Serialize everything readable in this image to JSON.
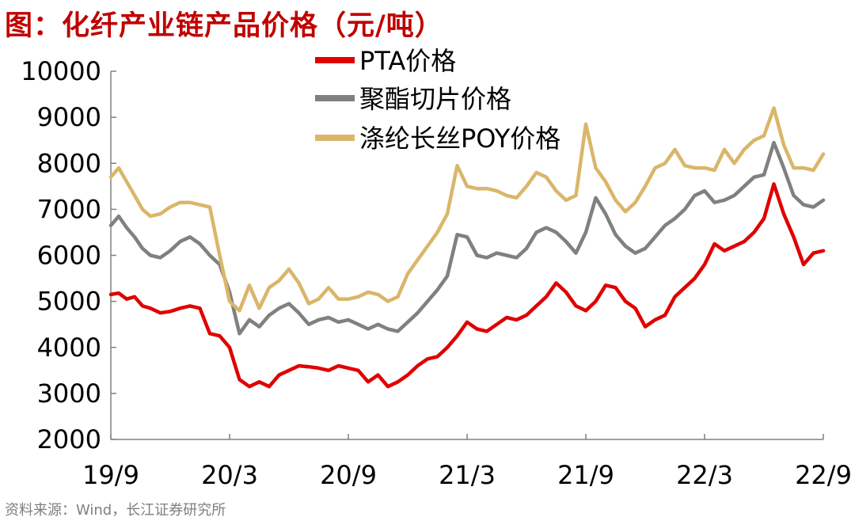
{
  "title": "图：化纤产业链产品价格（元/吨）",
  "source": "资料来源：Wind，长江证券研究所",
  "chart_data": {
    "type": "line",
    "title": "图：化纤产业链产品价格（元/吨）",
    "xlabel": "",
    "ylabel": "",
    "ylim": [
      2000,
      10000
    ],
    "yticks": [
      "10000",
      "9000",
      "8000",
      "7000",
      "6000",
      "5000",
      "4000",
      "3000",
      "2000"
    ],
    "ytick_values": [
      10000,
      9000,
      8000,
      7000,
      6000,
      5000,
      4000,
      3000,
      2000
    ],
    "xticks": [
      "19/9",
      "20/3",
      "20/9",
      "21/3",
      "21/9",
      "22/3",
      "22/9"
    ],
    "xlim": [
      0,
      36
    ],
    "legend_position": "top-center",
    "series": [
      {
        "name": "PTA价格",
        "color": "#e00000",
        "x": [
          0,
          0.4,
          0.8,
          1.2,
          1.6,
          2,
          2.5,
          3,
          3.5,
          4,
          4.5,
          5,
          5.5,
          6,
          6.5,
          7,
          7.5,
          8,
          8.5,
          9,
          9.5,
          10,
          10.5,
          11,
          11.5,
          12,
          12.5,
          13,
          13.5,
          14,
          14.5,
          15,
          15.5,
          16,
          16.5,
          17,
          17.5,
          18,
          18.5,
          19,
          19.5,
          20,
          20.5,
          21,
          21.5,
          22,
          22.5,
          23,
          23.5,
          24,
          24.5,
          25,
          25.5,
          26,
          26.5,
          27,
          27.5,
          28,
          28.5,
          29,
          29.5,
          30,
          30.5,
          31,
          31.5,
          32,
          32.5,
          33,
          33.5,
          34,
          34.5,
          35,
          35.5,
          36
        ],
        "values": [
          5150,
          5180,
          5050,
          5100,
          4900,
          4850,
          4750,
          4780,
          4850,
          4900,
          4850,
          4300,
          4250,
          4000,
          3300,
          3150,
          3250,
          3150,
          3400,
          3500,
          3600,
          3580,
          3550,
          3500,
          3600,
          3550,
          3500,
          3250,
          3400,
          3150,
          3250,
          3400,
          3600,
          3750,
          3800,
          4000,
          4250,
          4550,
          4400,
          4350,
          4500,
          4650,
          4600,
          4700,
          4900,
          5100,
          5400,
          5200,
          4900,
          4800,
          5000,
          5350,
          5300,
          5000,
          4850,
          4450,
          4600,
          4700,
          5100,
          5300,
          5500,
          5800,
          6250,
          6100,
          6200,
          6300,
          6500,
          6800,
          7550,
          6900,
          6400,
          5800,
          6050,
          6100
        ]
      },
      {
        "name": "聚酯切片价格",
        "color": "#808080",
        "x": [
          0,
          0.4,
          0.8,
          1.2,
          1.6,
          2,
          2.5,
          3,
          3.5,
          4,
          4.5,
          5,
          5.5,
          6,
          6.5,
          7,
          7.5,
          8,
          8.5,
          9,
          9.5,
          10,
          10.5,
          11,
          11.5,
          12,
          12.5,
          13,
          13.5,
          14,
          14.5,
          15,
          15.5,
          16,
          16.5,
          17,
          17.5,
          18,
          18.5,
          19,
          19.5,
          20,
          20.5,
          21,
          21.5,
          22,
          22.5,
          23,
          23.5,
          24,
          24.5,
          25,
          25.5,
          26,
          26.5,
          27,
          27.5,
          28,
          28.5,
          29,
          29.5,
          30,
          30.5,
          31,
          31.5,
          32,
          32.5,
          33,
          33.5,
          34,
          34.5,
          35,
          35.5,
          36
        ],
        "values": [
          6650,
          6850,
          6600,
          6400,
          6150,
          6000,
          5950,
          6100,
          6300,
          6400,
          6250,
          6000,
          5800,
          5200,
          4300,
          4600,
          4450,
          4700,
          4850,
          4950,
          4750,
          4500,
          4600,
          4650,
          4550,
          4600,
          4500,
          4400,
          4500,
          4400,
          4350,
          4550,
          4750,
          5000,
          5250,
          5550,
          6450,
          6400,
          6000,
          5950,
          6050,
          6000,
          5950,
          6150,
          6500,
          6600,
          6500,
          6300,
          6050,
          6500,
          7250,
          6900,
          6450,
          6200,
          6050,
          6150,
          6400,
          6650,
          6800,
          7000,
          7300,
          7400,
          7150,
          7200,
          7300,
          7500,
          7700,
          7750,
          8450,
          7900,
          7300,
          7100,
          7050,
          7200
        ]
      },
      {
        "name": "涤纶长丝POY价格",
        "color": "#d9b66a",
        "x": [
          0,
          0.4,
          0.8,
          1.2,
          1.6,
          2,
          2.5,
          3,
          3.5,
          4,
          4.5,
          5,
          5.5,
          6,
          6.5,
          7,
          7.5,
          8,
          8.5,
          9,
          9.5,
          10,
          10.5,
          11,
          11.5,
          12,
          12.5,
          13,
          13.5,
          14,
          14.5,
          15,
          15.5,
          16,
          16.5,
          17,
          17.5,
          18,
          18.5,
          19,
          19.5,
          20,
          20.5,
          21,
          21.5,
          22,
          22.5,
          23,
          23.5,
          24,
          24.5,
          25,
          25.5,
          26,
          26.5,
          27,
          27.5,
          28,
          28.5,
          29,
          29.5,
          30,
          30.5,
          31,
          31.5,
          32,
          32.5,
          33,
          33.5,
          34,
          34.5,
          35,
          35.5,
          36
        ],
        "values": [
          7700,
          7900,
          7600,
          7300,
          7000,
          6850,
          6900,
          7050,
          7150,
          7150,
          7100,
          7050,
          6000,
          5000,
          4800,
          5350,
          4850,
          5300,
          5450,
          5700,
          5400,
          4950,
          5050,
          5300,
          5050,
          5050,
          5100,
          5200,
          5150,
          5000,
          5100,
          5600,
          5900,
          6200,
          6500,
          6900,
          7950,
          7500,
          7450,
          7450,
          7400,
          7300,
          7250,
          7500,
          7800,
          7700,
          7400,
          7200,
          7300,
          8850,
          7900,
          7600,
          7200,
          6950,
          7150,
          7500,
          7900,
          8000,
          8300,
          7950,
          7900,
          7900,
          7850,
          8300,
          8000,
          8300,
          8500,
          8600,
          9200,
          8400,
          7900,
          7900,
          7850,
          8200
        ]
      }
    ]
  }
}
